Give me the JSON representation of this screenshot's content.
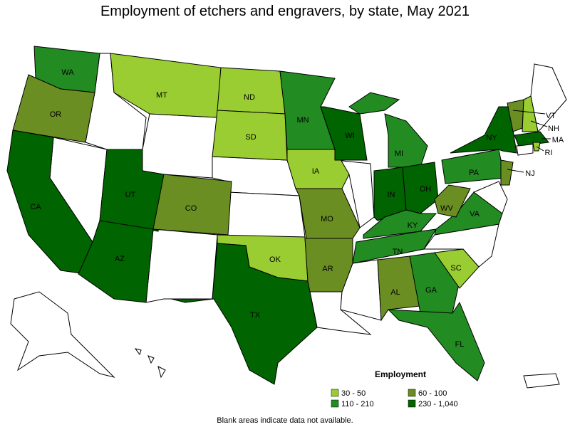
{
  "title": "Employment of etchers and engravers, by state, May 2021",
  "legend": {
    "title": "Employment",
    "items": [
      {
        "label": "30 - 50",
        "color": "#9acd32"
      },
      {
        "label": "60 - 100",
        "color": "#6b8e23"
      },
      {
        "label": "110 - 210",
        "color": "#228b22"
      },
      {
        "label": "230 - 1,040",
        "color": "#006400"
      }
    ]
  },
  "states": [
    {
      "label": "WA",
      "color": "#228b22"
    },
    {
      "label": "OR",
      "color": "#6b8e23"
    },
    {
      "label": "CA",
      "color": "#006400"
    },
    {
      "label": "MT",
      "color": "#9acd32"
    },
    {
      "label": "UT",
      "color": "#006400"
    },
    {
      "label": "CO",
      "color": "#6b8e23"
    },
    {
      "label": "AZ",
      "color": "#006400"
    },
    {
      "label": "ND",
      "color": "#9acd32"
    },
    {
      "label": "SD",
      "color": "#9acd32"
    },
    {
      "label": "OK",
      "color": "#9acd32"
    },
    {
      "label": "TX",
      "color": "#006400"
    },
    {
      "label": "MN",
      "color": "#228b22"
    },
    {
      "label": "IA",
      "color": "#9acd32"
    },
    {
      "label": "MO",
      "color": "#6b8e23"
    },
    {
      "label": "AR",
      "color": "#6b8e23"
    },
    {
      "label": "WI",
      "color": "#006400"
    },
    {
      "label": "MI",
      "color": "#228b22"
    },
    {
      "label": "IN",
      "color": "#006400"
    },
    {
      "label": "OH",
      "color": "#006400"
    },
    {
      "label": "KY",
      "color": "#228b22"
    },
    {
      "label": "TN",
      "color": "#228b22"
    },
    {
      "label": "AL",
      "color": "#6b8e23"
    },
    {
      "label": "GA",
      "color": "#228b22"
    },
    {
      "label": "FL",
      "color": "#228b22"
    },
    {
      "label": "SC",
      "color": "#9acd32"
    },
    {
      "label": "VA",
      "color": "#228b22"
    },
    {
      "label": "WV",
      "color": "#6b8e23"
    },
    {
      "label": "PA",
      "color": "#228b22"
    },
    {
      "label": "NY",
      "color": "#006400"
    },
    {
      "label": "VT",
      "color": "#6b8e23"
    },
    {
      "label": "NH",
      "color": "#9acd32"
    },
    {
      "label": "MA",
      "color": "#006400"
    },
    {
      "label": "RI",
      "color": "#9acd32"
    },
    {
      "label": "NJ",
      "color": "#6b8e23"
    }
  ],
  "footnote": "Blank areas indicate data not available."
}
